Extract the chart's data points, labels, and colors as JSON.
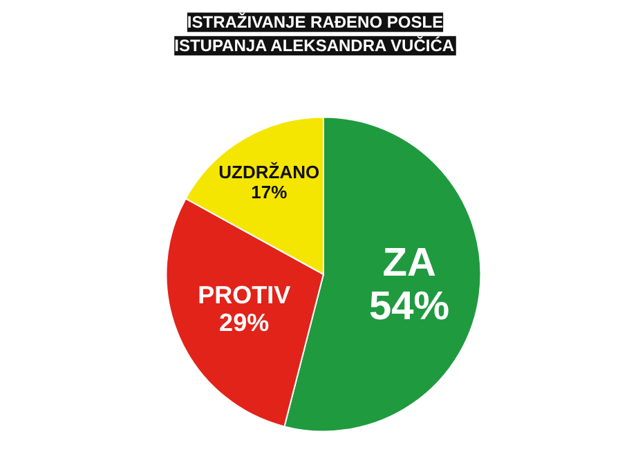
{
  "chart_data": {
    "type": "pie",
    "title": "ISTRAŽIVANJE RAĐENO POSLE\nISTUPANJA ALEKSANDRA VUČIĆA",
    "categories": [
      "ZA",
      "PROTIV",
      "UZDRŽANO"
    ],
    "values": [
      54,
      29,
      17
    ],
    "colors": [
      "#1f9a3f",
      "#e2231a",
      "#f4e600"
    ],
    "value_labels": [
      "54%",
      "29%",
      "17%"
    ],
    "legend": false
  }
}
